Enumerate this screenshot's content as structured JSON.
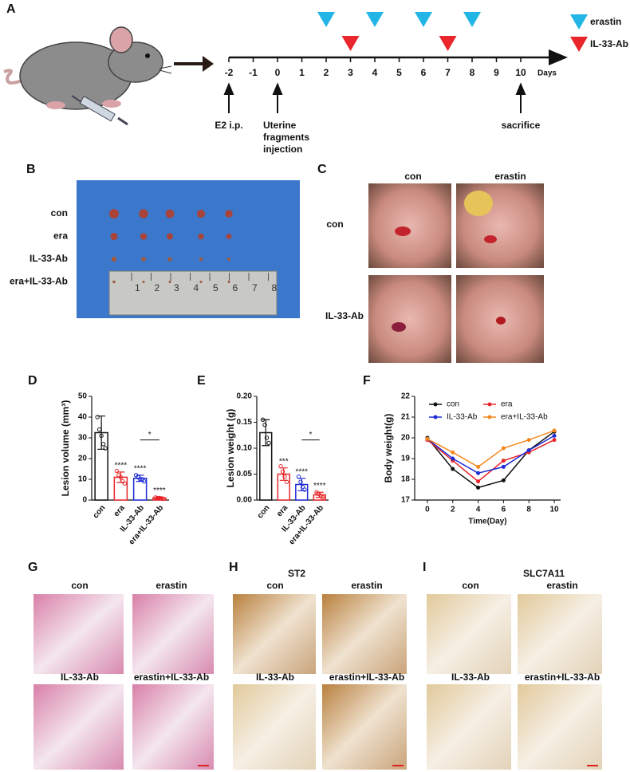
{
  "panel_labels": [
    "A",
    "B",
    "C",
    "D",
    "E",
    "F",
    "G",
    "H",
    "I"
  ],
  "timeline": {
    "days": [
      -2,
      -1,
      0,
      1,
      2,
      3,
      4,
      5,
      6,
      7,
      8,
      9,
      10
    ],
    "days_label": "Days",
    "erastin_days": [
      2,
      4,
      6,
      8
    ],
    "il33_days": [
      3,
      7
    ],
    "legend": [
      "erastin",
      "IL-33-Ab"
    ],
    "events": [
      {
        "day": -2,
        "lines": [
          "E2 i.p."
        ]
      },
      {
        "day": 0,
        "lines": [
          "Uterine",
          "fragments",
          "injection"
        ]
      },
      {
        "day": 10,
        "lines": [
          "sacrifice"
        ]
      }
    ]
  },
  "panel_b": {
    "rows": [
      "con",
      "era",
      "IL-33-Ab",
      "era+IL-33-Ab"
    ],
    "ruler": [
      1,
      2,
      3,
      4,
      5,
      6,
      7,
      8
    ]
  },
  "panel_c": {
    "columns": [
      "con",
      "erastin"
    ],
    "rows": [
      "con",
      "IL-33-Ab"
    ]
  },
  "chart_data": [
    {
      "type": "bar",
      "ylabel": "Lesion volume (mm³)",
      "categories": [
        "con",
        "era",
        "IL-33-Ab",
        "era+IL-33-Ab"
      ],
      "values": [
        32.5,
        11,
        10.5,
        1
      ],
      "errors": [
        8,
        2.5,
        1.5,
        0.4
      ],
      "points": [
        [
          40,
          34,
          31,
          27,
          25
        ],
        [
          14,
          12,
          11,
          9,
          8
        ],
        [
          12,
          11,
          10,
          10,
          9
        ],
        [
          1.2,
          1,
          1,
          0.8,
          0.6
        ]
      ],
      "colors": [
        "#111111",
        "#e8262b",
        "#1f2bd6",
        "#e8262b"
      ],
      "annotations": [
        null,
        "****",
        "****",
        "****"
      ],
      "bracket_label": "*",
      "ylim": [
        0,
        50
      ],
      "yticks": [
        0,
        10,
        20,
        30,
        40,
        50
      ]
    },
    {
      "type": "bar",
      "ylabel": "Lesion weight (g)",
      "categories": [
        "con",
        "era",
        "IL-33-Ab",
        "era+IL-33-Ab"
      ],
      "values": [
        0.13,
        0.05,
        0.03,
        0.01
      ],
      "errors": [
        0.025,
        0.012,
        0.012,
        0.005
      ],
      "points": [
        [
          0.155,
          0.145,
          0.12,
          0.11
        ],
        [
          0.065,
          0.055,
          0.045,
          0.035
        ],
        [
          0.045,
          0.035,
          0.025,
          0.02
        ],
        [
          0.015,
          0.012,
          0.008,
          0.005
        ]
      ],
      "colors": [
        "#111111",
        "#e8262b",
        "#1f2bd6",
        "#e8262b"
      ],
      "annotations": [
        null,
        "***",
        "****",
        "****"
      ],
      "bracket_label": "*",
      "ylim": [
        0,
        0.2
      ],
      "yticks": [
        {
          "value": 0,
          "label": "0.00"
        },
        {
          "value": 0.05,
          "label": "0.05"
        },
        {
          "value": 0.1,
          "label": "0.10"
        },
        {
          "value": 0.15,
          "label": "0.15"
        },
        {
          "value": 0.2,
          "label": "0.20"
        }
      ]
    },
    {
      "type": "line",
      "xlabel": "Time(Day)",
      "ylabel": "Body weight(g)",
      "x": [
        0,
        2,
        4,
        6,
        8,
        10
      ],
      "series": [
        {
          "name": "con",
          "color": "#111111",
          "values": [
            20.0,
            18.5,
            17.6,
            17.95,
            19.4,
            20.3
          ]
        },
        {
          "name": "era",
          "color": "#e8262b",
          "values": [
            19.9,
            18.9,
            17.9,
            18.9,
            19.3,
            19.9
          ]
        },
        {
          "name": "IL-33-Ab",
          "color": "#1f2bd6",
          "values": [
            19.95,
            19.0,
            18.3,
            18.6,
            19.4,
            20.1
          ]
        },
        {
          "name": "era+IL-33-Ab",
          "color": "#f5891f",
          "values": [
            19.95,
            19.3,
            18.6,
            19.5,
            19.9,
            20.35
          ]
        }
      ],
      "xlim": [
        -1,
        10.5
      ],
      "xticks": [
        0,
        2,
        4,
        6,
        8,
        10
      ],
      "ylim": [
        17,
        22
      ],
      "yticks": [
        17,
        18,
        19,
        20,
        21,
        22
      ]
    }
  ],
  "histology": [
    {
      "labels": [
        "con",
        "erastin",
        "IL-33-Ab",
        "erastin+IL-33-Ab"
      ]
    },
    {
      "title": "ST2",
      "labels": [
        "con",
        "erastin",
        "IL-33-Ab",
        "erastin+IL-33-Ab"
      ]
    },
    {
      "title": "SLC7A11",
      "labels": [
        "con",
        "erastin",
        "IL-33-Ab",
        "erastin+IL-33-Ab"
      ]
    }
  ]
}
